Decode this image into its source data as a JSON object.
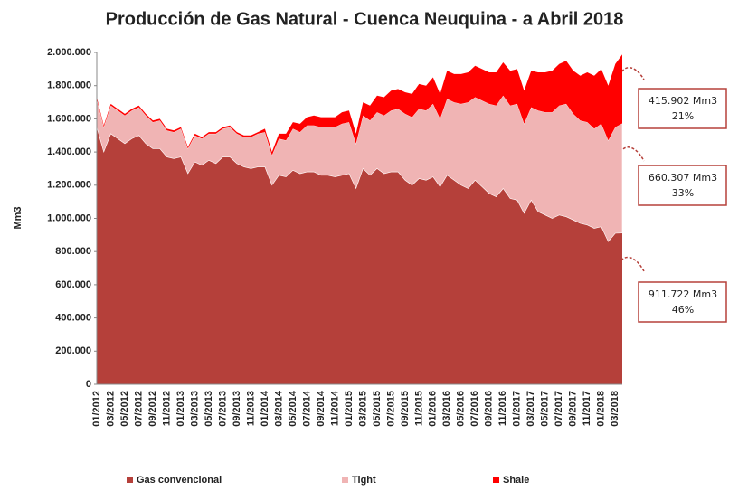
{
  "chart_data": {
    "type": "stacked-area",
    "title": "Producción de Gas Natural - Cuenca Neuquina - a Abril 2018",
    "y_label": "Mm3",
    "categories": [
      "01/2012",
      null,
      "03/2012",
      null,
      "05/2012",
      null,
      "07/2012",
      null,
      "09/2012",
      null,
      "11/2012",
      null,
      "01/2013",
      null,
      "03/2013",
      null,
      "05/2013",
      null,
      "07/2013",
      null,
      "09/2013",
      null,
      "11/2013",
      null,
      "01/2014",
      null,
      "03/2014",
      null,
      "05/2014",
      null,
      "07/2014",
      null,
      "09/2014",
      null,
      "11/2014",
      null,
      "01/2015",
      null,
      "03/2015",
      null,
      "05/2015",
      null,
      "07/2015",
      null,
      "09/2015",
      null,
      "11/2015",
      null,
      "01/2016",
      null,
      "03/2016",
      null,
      "05/2016",
      null,
      "07/2016",
      null,
      "09/2016",
      null,
      "11/2016",
      null,
      "01/2017",
      null,
      "03/2017",
      null,
      "05/2017",
      null,
      "07/2017",
      null,
      "09/2017",
      null,
      "11/2017",
      null,
      "01/2018",
      null,
      "03/2018",
      null
    ],
    "series": [
      {
        "name": "Gas convencional",
        "color": "#b5403a",
        "values": [
          1550000,
          1400000,
          1510000,
          1480000,
          1450000,
          1480000,
          1500000,
          1450000,
          1420000,
          1420000,
          1370000,
          1360000,
          1370000,
          1270000,
          1340000,
          1320000,
          1350000,
          1330000,
          1370000,
          1370000,
          1330000,
          1310000,
          1300000,
          1310000,
          1310000,
          1200000,
          1260000,
          1250000,
          1290000,
          1270000,
          1280000,
          1280000,
          1260000,
          1260000,
          1250000,
          1260000,
          1270000,
          1180000,
          1300000,
          1260000,
          1300000,
          1270000,
          1280000,
          1280000,
          1230000,
          1200000,
          1240000,
          1230000,
          1250000,
          1190000,
          1260000,
          1230000,
          1200000,
          1180000,
          1230000,
          1190000,
          1150000,
          1130000,
          1180000,
          1120000,
          1110000,
          1030000,
          1110000,
          1040000,
          1020000,
          1000000,
          1020000,
          1010000,
          990000,
          970000,
          960000,
          940000,
          950000,
          860000,
          910000,
          911722
        ]
      },
      {
        "name": "Tight",
        "color": "#f0b4b4",
        "values": [
          170000,
          150000,
          170000,
          170000,
          170000,
          170000,
          170000,
          170000,
          160000,
          170000,
          160000,
          160000,
          170000,
          150000,
          160000,
          160000,
          160000,
          180000,
          170000,
          180000,
          180000,
          180000,
          190000,
          200000,
          210000,
          180000,
          220000,
          220000,
          250000,
          250000,
          280000,
          280000,
          290000,
          290000,
          300000,
          310000,
          310000,
          270000,
          320000,
          330000,
          340000,
          350000,
          370000,
          380000,
          400000,
          410000,
          420000,
          420000,
          440000,
          410000,
          460000,
          470000,
          490000,
          520000,
          500000,
          520000,
          540000,
          550000,
          560000,
          560000,
          580000,
          540000,
          560000,
          610000,
          620000,
          640000,
          660000,
          680000,
          640000,
          620000,
          620000,
          600000,
          620000,
          610000,
          640000,
          660307
        ]
      },
      {
        "name": "Shale",
        "color": "#ff0000",
        "values": [
          10000,
          10000,
          10000,
          10000,
          10000,
          10000,
          10000,
          10000,
          10000,
          10000,
          10000,
          10000,
          10000,
          10000,
          10000,
          10000,
          10000,
          10000,
          10000,
          10000,
          10000,
          10000,
          10000,
          10000,
          20000,
          20000,
          30000,
          40000,
          40000,
          50000,
          50000,
          60000,
          60000,
          60000,
          60000,
          70000,
          70000,
          60000,
          80000,
          90000,
          100000,
          110000,
          120000,
          120000,
          130000,
          140000,
          150000,
          150000,
          160000,
          150000,
          170000,
          170000,
          180000,
          180000,
          190000,
          190000,
          190000,
          200000,
          200000,
          210000,
          210000,
          200000,
          220000,
          230000,
          240000,
          250000,
          250000,
          260000,
          260000,
          270000,
          300000,
          320000,
          330000,
          330000,
          380000,
          415902
        ]
      }
    ],
    "ylim": [
      0,
      2000000
    ],
    "yticks": [
      0,
      {
        "value": 200000,
        "label": "200.000"
      },
      {
        "value": 400000,
        "label": "400.000"
      },
      {
        "value": 600000,
        "label": "600.000"
      },
      {
        "value": 800000,
        "label": "800.000"
      },
      {
        "value": 1000000,
        "label": "1.000.000"
      },
      {
        "value": 1200000,
        "label": "1.200.000"
      },
      {
        "value": 1400000,
        "label": "1.400.000"
      },
      {
        "value": 1600000,
        "label": "1.600.000"
      },
      {
        "value": 1800000,
        "label": "1.800.000"
      },
      {
        "value": 2000000,
        "label": "2.000.000"
      }
    ],
    "annotations": [
      {
        "amount": "415.902 Mm3",
        "share": "21%"
      },
      {
        "amount": "660.307 Mm3",
        "share": "33%"
      },
      {
        "amount": "911.722 Mm3",
        "share": "46%"
      }
    ]
  }
}
